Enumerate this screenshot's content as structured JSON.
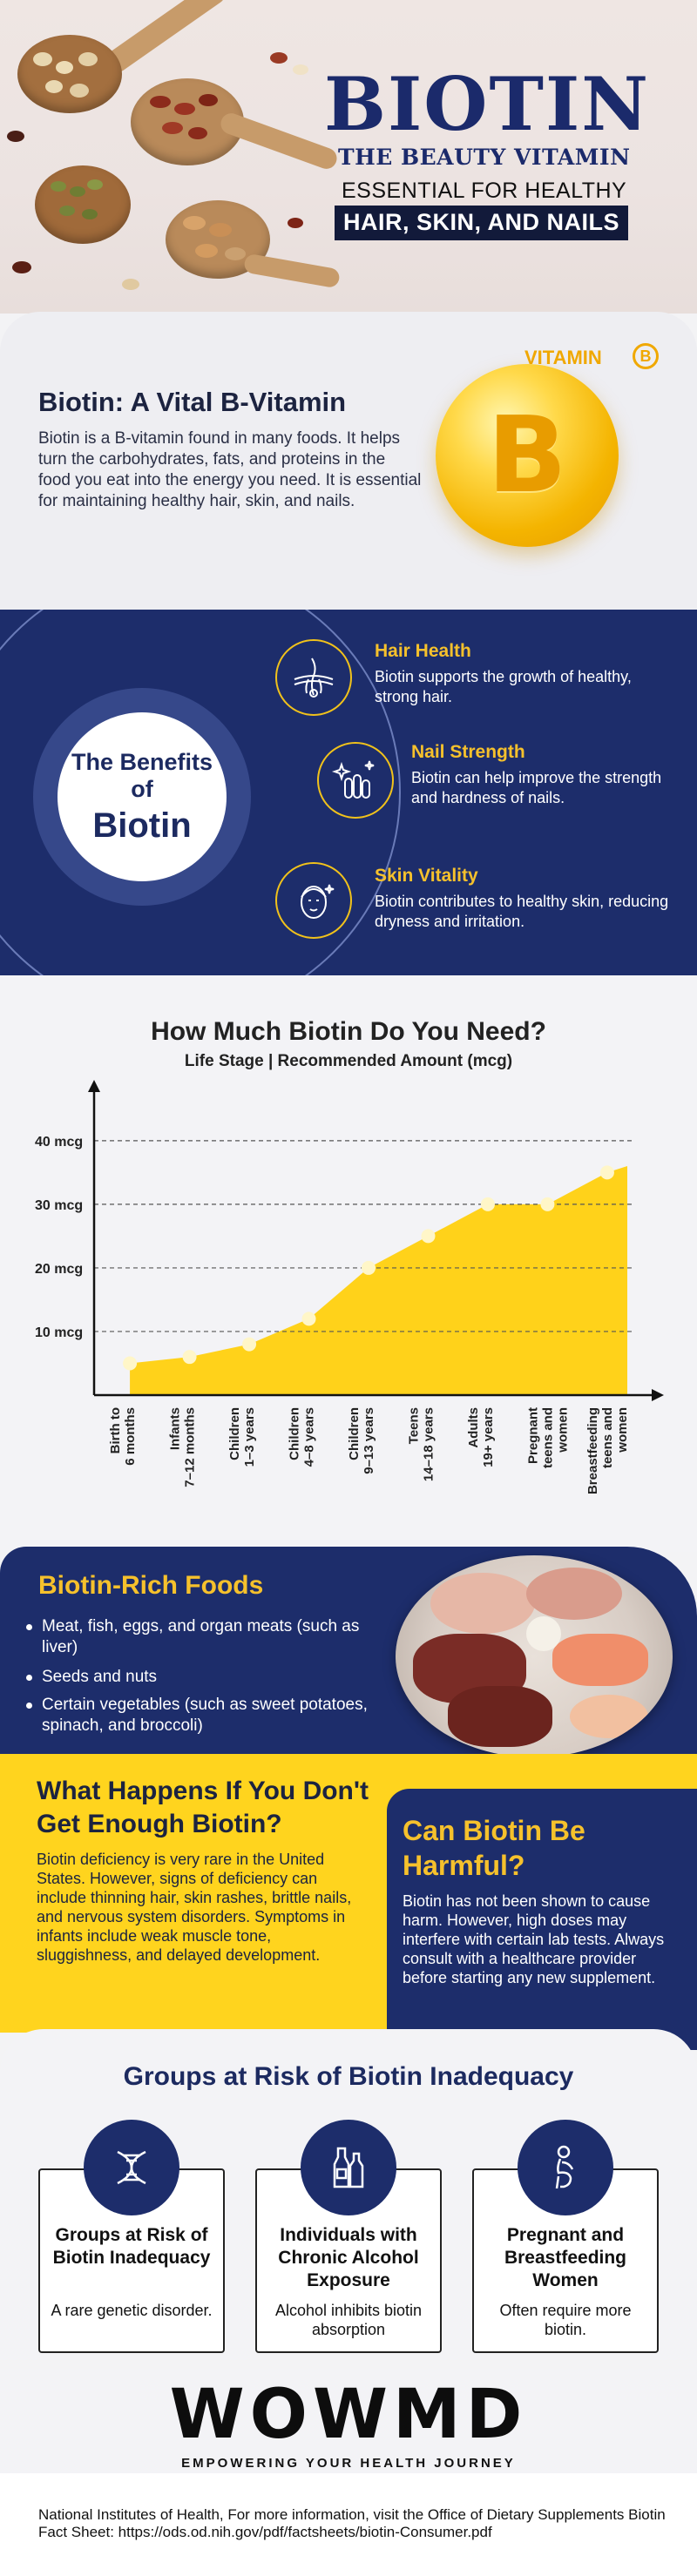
{
  "hero": {
    "title": "BIOTIN",
    "subtitle": "THE BEAUTY VITAMIN",
    "line1": "ESSENTIAL FOR HEALTHY",
    "line2": "HAIR, SKIN, AND NAILS"
  },
  "intro": {
    "title": "Biotin: A Vital B-Vitamin",
    "text": "Biotin is a B-vitamin found in many foods. It helps turn the carbohydrates, fats, and proteins in the food you eat into the energy you need. It is essential for maintaining healthy hair, skin, and nails.",
    "badge_label": "VITAMIN",
    "badge_letter": "B",
    "ball_letter": "B"
  },
  "benefits": {
    "circle_line1": "The Benefits of",
    "circle_line2": "Biotin",
    "items": [
      {
        "title": "Hair Health",
        "text": "Biotin supports the growth of healthy, strong hair.",
        "icon": "hair-follicle-icon"
      },
      {
        "title": "Nail Strength",
        "text": "Biotin can help improve the strength and hardness of nails.",
        "icon": "nails-sparkle-icon"
      },
      {
        "title": "Skin Vitality",
        "text": "Biotin contributes to healthy skin, reducing dryness and irritation.",
        "icon": "face-skin-icon"
      }
    ]
  },
  "chart_section": {
    "title": "How Much Biotin Do You Need?",
    "subtitle": "Life Stage | Recommended Amount (mcg)"
  },
  "chart_data": {
    "type": "area",
    "title": "How Much Biotin Do You Need?",
    "subtitle": "Life Stage | Recommended Amount (mcg)",
    "categories": [
      [
        "Birth to",
        "6 months"
      ],
      [
        "Infants",
        "7–12 months"
      ],
      [
        "Children",
        "1–3 years"
      ],
      [
        "Children",
        "4–8 years"
      ],
      [
        "Children",
        "9–13 years"
      ],
      [
        "Teens",
        "14–18 years"
      ],
      [
        "Adults",
        "19+ years"
      ],
      [
        "Pregnant",
        "teens and",
        "women"
      ],
      [
        "Breastfeeding",
        "teens and",
        "women"
      ]
    ],
    "values": [
      5,
      6,
      8,
      12,
      20,
      25,
      30,
      30,
      35
    ],
    "y_ticks": [
      10,
      20,
      30,
      40
    ],
    "y_tick_suffix": " mcg",
    "ylim": [
      0,
      40
    ],
    "grid": "dashed horizontal",
    "colors": {
      "fill": "#ffd21a",
      "point": "#fff6c8",
      "axis": "#111111"
    }
  },
  "foods": {
    "title": "Biotin-Rich Foods",
    "items": [
      "Meat, fish, eggs, and organ meats (such as liver)",
      "Seeds and nuts",
      "Certain vegetables (such as sweet potatoes, spinach, and broccoli)"
    ]
  },
  "deficiency": {
    "title": "What Happens If You Don't Get Enough Biotin?",
    "text": "Biotin deficiency is very rare in the United States. However, signs of deficiency can include thinning hair, skin rashes, brittle nails, and nervous system disorders. Symptoms in infants include weak muscle tone, sluggishness, and delayed development."
  },
  "harmful": {
    "title": "Can Biotin Be Harmful?",
    "text": "Biotin has not been shown to cause harm. However, high doses may interfere with certain lab tests. Always consult with a healthcare provider before starting any new supplement."
  },
  "groups": {
    "title": "Groups at Risk of Biotin Inadequacy",
    "cards": [
      {
        "title": "Groups at Risk of Biotin Inadequacy",
        "text": "A rare genetic disorder.",
        "icon": "dna-icon"
      },
      {
        "title": "Individuals with Chronic Alcohol Exposure",
        "text": "Alcohol inhibits biotin absorption",
        "icon": "bottles-icon"
      },
      {
        "title": "Pregnant and Breastfeeding Women",
        "text": "Often require more biotin.",
        "icon": "pregnant-woman-icon"
      }
    ]
  },
  "brand": {
    "logo": "WOWMD",
    "tagline": "EMPOWERING YOUR HEALTH JOURNEY"
  },
  "footer": {
    "text": "National Institutes of Health, For more information, visit the Office of Dietary Supplements Biotin Fact Sheet: https://ods.od.nih.gov/pdf/factsheets/biotin-Consumer.pdf"
  },
  "colors": {
    "navy": "#1d2d6b",
    "yellow": "#ffd41e",
    "gold": "#f6c12c"
  }
}
